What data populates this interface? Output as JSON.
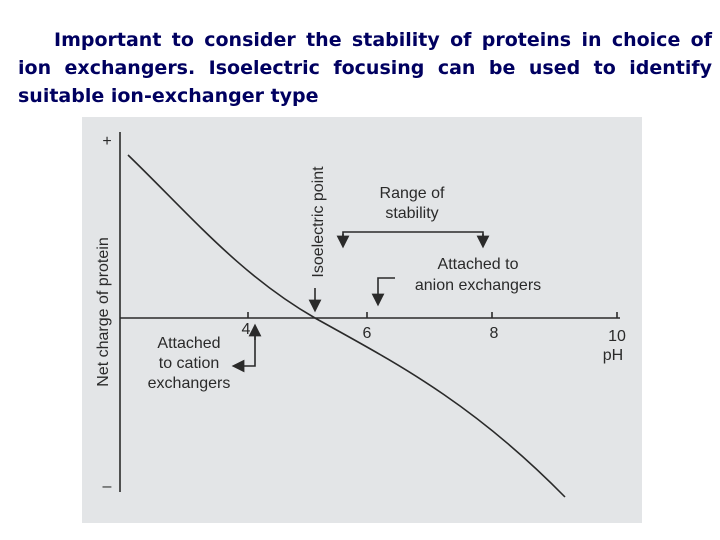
{
  "text": "Important to consider the stability of proteins in choice of ion exchangers. Isoelectric focusing can be used to identify suitable ion-exchanger type",
  "figure": {
    "y_axis_label": "Net charge of protein",
    "y_plus": "+",
    "y_minus": "–",
    "x_axis_label": "pH",
    "x_ticks": [
      "4",
      "6",
      "8",
      "10"
    ],
    "isoelectric_point": "Isoelectric point",
    "range_of_stability": [
      "Range of",
      "stability"
    ],
    "anion": [
      "Attached to",
      "anion exchangers"
    ],
    "cation": [
      "Attached",
      "to cation",
      "exchangers"
    ]
  }
}
